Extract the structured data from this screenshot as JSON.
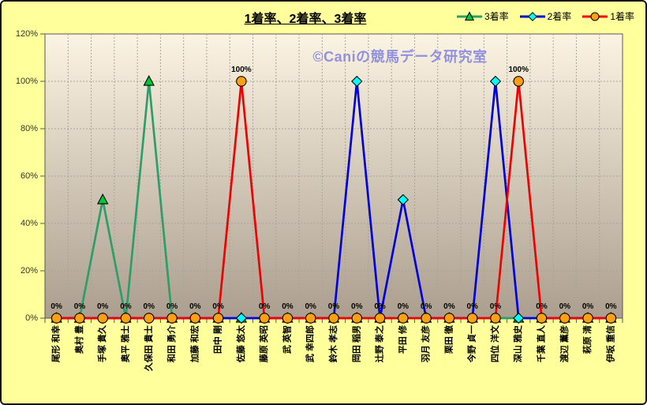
{
  "title": "1着率、2着率、3着率",
  "watermark": "©Caniの競馬データ研究室",
  "style": {
    "background": "#FFFF9C",
    "frame_border": "#151515",
    "plot_gradient_top": "#FCF4E3",
    "plot_gradient_bottom": "#AB9E8E",
    "plot_border": "#5A5A5A",
    "gridline_color": "#A8A49C",
    "axis_tick_color": "#5A5A5A",
    "y_label_color": "#333333",
    "x_label_color": "#000000",
    "data_label_color": "#000000",
    "watermark_color": "#9191E0",
    "title_color": "#000000"
  },
  "chart_data": {
    "type": "line",
    "title": "1着率、2着率、3着率",
    "legend_position": "top-right",
    "grid": {
      "horizontal": true,
      "vertical": true,
      "style": "dashed"
    },
    "y_axis": {
      "min": 0,
      "max": 120,
      "step": 20,
      "tick_labels": [
        "0%",
        "20%",
        "40%",
        "60%",
        "80%",
        "100%",
        "120%"
      ]
    },
    "categories": [
      "尾形 和幸",
      "奥村 豊",
      "手塚 貴久",
      "奥平 雅士",
      "久保田 貴士",
      "和田 勇介",
      "加藤 和宏",
      "田中 剛",
      "佐藤 悠太",
      "藤原 英昭",
      "武 英智",
      "武 幸四郎",
      "鈴木 孝志",
      "岡田 稲男",
      "辻野 泰之",
      "平田 修",
      "羽月 友彦",
      "栗田 徹",
      "今野 貞一",
      "四位 洋文",
      "深山 雅史",
      "千葉 直人",
      "渡辺 薫彦",
      "萩原 清",
      "伊坂 重信"
    ],
    "series": [
      {
        "name": "3着率",
        "key": "third-place-rate",
        "color": "#2E9E68",
        "marker": "triangle",
        "marker_fill": "#00C837",
        "data_labels": false,
        "values": [
          0,
          0,
          50,
          0,
          100,
          0,
          0,
          0,
          0,
          0,
          0,
          0,
          0,
          0,
          0,
          0,
          0,
          0,
          0,
          0,
          0,
          0,
          0,
          0,
          0
        ]
      },
      {
        "name": "2着率",
        "key": "second-place-rate",
        "color": "#0000DC",
        "marker": "diamond",
        "marker_fill": "#00FFFF",
        "data_labels": false,
        "values": [
          0,
          0,
          0,
          0,
          0,
          0,
          0,
          0,
          0,
          0,
          0,
          0,
          0,
          100,
          0,
          50,
          0,
          0,
          0,
          100,
          0,
          0,
          0,
          0,
          0
        ]
      },
      {
        "name": "1着率",
        "key": "first-place-rate",
        "color": "#F00000",
        "marker": "circle",
        "marker_fill": "#FFA013",
        "data_labels": true,
        "values": [
          0,
          0,
          0,
          0,
          0,
          0,
          0,
          0,
          100,
          0,
          0,
          0,
          0,
          0,
          0,
          0,
          0,
          0,
          0,
          0,
          100,
          0,
          0,
          0,
          0
        ]
      }
    ]
  }
}
